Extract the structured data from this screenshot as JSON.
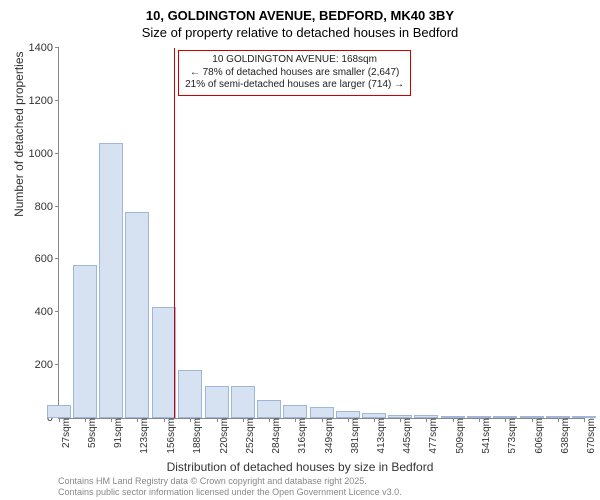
{
  "title": "10, GOLDINGTON AVENUE, BEDFORD, MK40 3BY",
  "subtitle": "Size of property relative to detached houses in Bedford",
  "ylabel": "Number of detached properties",
  "xlabel": "Distribution of detached houses by size in Bedford",
  "footer_line1": "Contains HM Land Registry data © Crown copyright and database right 2025.",
  "footer_line2": "Contains public sector information licensed under the Open Government Licence v3.0.",
  "annotation": {
    "line1": "10 GOLDINGTON AVENUE: 168sqm",
    "line2": "← 78% of detached houses are smaller (2,647)",
    "line3": "21% of semi-detached houses are larger (714) →"
  },
  "chart": {
    "type": "histogram",
    "background_color": "#ffffff",
    "bar_fill": "#d6e1f2",
    "bar_border": "#9fb6d8",
    "marker_color": "#cc0000",
    "axis_color": "#888888",
    "ylim": [
      0,
      1400
    ],
    "yticks": [
      0,
      200,
      400,
      600,
      800,
      1000,
      1200,
      1400
    ],
    "xticks": [
      27,
      59,
      91,
      123,
      156,
      188,
      220,
      252,
      284,
      316,
      349,
      381,
      413,
      445,
      477,
      509,
      541,
      573,
      606,
      638,
      670
    ],
    "xtick_unit": "sqm",
    "marker_value": 168,
    "bars": [
      {
        "x": 27,
        "value": 50
      },
      {
        "x": 59,
        "value": 580
      },
      {
        "x": 91,
        "value": 1040
      },
      {
        "x": 123,
        "value": 780
      },
      {
        "x": 156,
        "value": 420
      },
      {
        "x": 188,
        "value": 180
      },
      {
        "x": 220,
        "value": 120
      },
      {
        "x": 252,
        "value": 120
      },
      {
        "x": 284,
        "value": 70
      },
      {
        "x": 316,
        "value": 50
      },
      {
        "x": 349,
        "value": 40
      },
      {
        "x": 381,
        "value": 25
      },
      {
        "x": 413,
        "value": 20
      },
      {
        "x": 445,
        "value": 10
      },
      {
        "x": 477,
        "value": 10
      },
      {
        "x": 509,
        "value": 5
      },
      {
        "x": 541,
        "value": 5
      },
      {
        "x": 573,
        "value": 3
      },
      {
        "x": 606,
        "value": 3
      },
      {
        "x": 638,
        "value": 2
      },
      {
        "x": 670,
        "value": 2
      }
    ]
  }
}
